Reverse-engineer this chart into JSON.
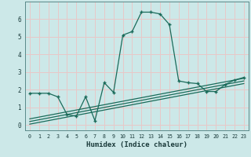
{
  "xlabel": "Humidex (Indice chaleur)",
  "bg_color": "#cce8e8",
  "grid_color": "#e8c8c8",
  "line_color": "#1a6b5a",
  "xlim": [
    -0.5,
    23.5
  ],
  "ylim": [
    -0.3,
    7.0
  ],
  "yticks": [
    0,
    1,
    2,
    3,
    4,
    5,
    6
  ],
  "xticks": [
    0,
    1,
    2,
    3,
    4,
    5,
    6,
    7,
    8,
    9,
    10,
    11,
    12,
    13,
    14,
    15,
    16,
    17,
    18,
    19,
    20,
    21,
    22,
    23
  ],
  "main_x": [
    0,
    1,
    2,
    3,
    4,
    5,
    6,
    7,
    8,
    9,
    10,
    11,
    12,
    13,
    14,
    15,
    16,
    17,
    18,
    19,
    20,
    21,
    22,
    23
  ],
  "main_y": [
    1.8,
    1.8,
    1.8,
    1.6,
    0.6,
    0.5,
    1.6,
    0.25,
    2.4,
    1.85,
    5.1,
    5.3,
    6.4,
    6.4,
    6.3,
    5.7,
    2.5,
    2.4,
    2.35,
    1.9,
    1.9,
    2.3,
    2.55,
    2.7
  ],
  "line1_x": [
    0,
    23
  ],
  "line1_y": [
    0.05,
    2.35
  ],
  "line2_x": [
    0,
    23
  ],
  "line2_y": [
    0.2,
    2.5
  ],
  "line3_x": [
    0,
    23
  ],
  "line3_y": [
    0.35,
    2.65
  ]
}
